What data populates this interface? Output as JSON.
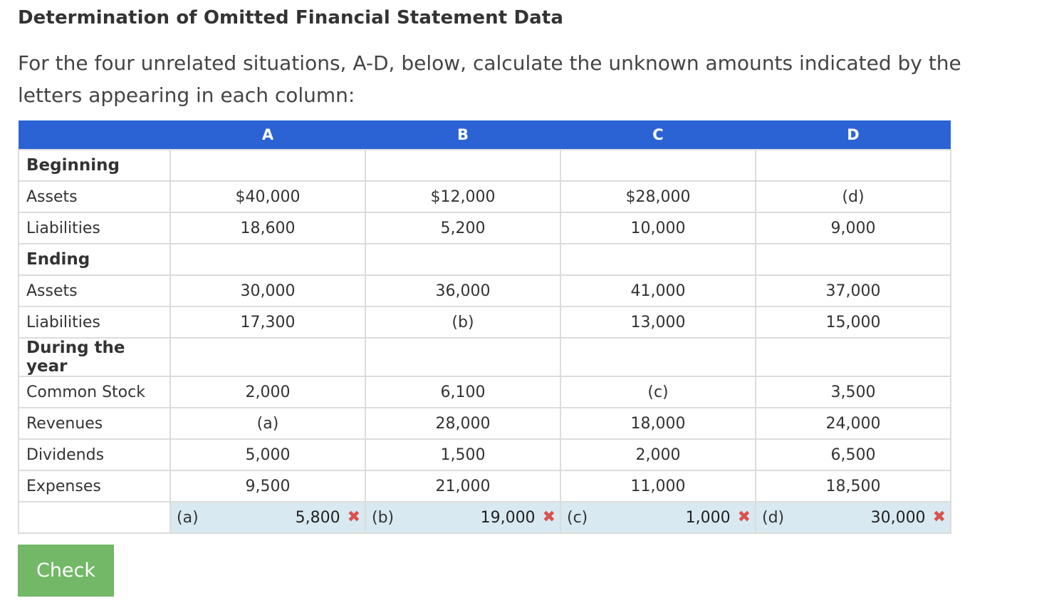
{
  "title": "Determination of Omitted Financial Statement Data",
  "intro": "For the four unrelated situations, A-D, below, calculate the unknown amounts indicated by the letters appearing in each column:",
  "table": {
    "headers": [
      "",
      "A",
      "B",
      "C",
      "D"
    ],
    "rows": [
      {
        "label": "Beginning",
        "section": true,
        "values": [
          "",
          "",
          "",
          ""
        ]
      },
      {
        "label": "Assets",
        "section": false,
        "values": [
          "$40,000",
          "$12,000",
          "$28,000",
          "(d)"
        ]
      },
      {
        "label": "Liabilities",
        "section": false,
        "values": [
          "18,600",
          "5,200",
          "10,000",
          "9,000"
        ]
      },
      {
        "label": "Ending",
        "section": true,
        "values": [
          "",
          "",
          "",
          ""
        ]
      },
      {
        "label": "Assets",
        "section": false,
        "values": [
          "30,000",
          "36,000",
          "41,000",
          "37,000"
        ]
      },
      {
        "label": "Liabilities",
        "section": false,
        "values": [
          "17,300",
          "(b)",
          "13,000",
          "15,000"
        ]
      },
      {
        "label": "During the year",
        "section": true,
        "values": [
          "",
          "",
          "",
          ""
        ]
      },
      {
        "label": "Common Stock",
        "section": false,
        "values": [
          "2,000",
          "6,100",
          "(c)",
          "3,500"
        ]
      },
      {
        "label": "Revenues",
        "section": false,
        "values": [
          "(a)",
          "28,000",
          "18,000",
          "24,000"
        ]
      },
      {
        "label": "Dividends",
        "section": false,
        "values": [
          "5,000",
          "1,500",
          "2,000",
          "6,500"
        ]
      },
      {
        "label": "Expenses",
        "section": false,
        "values": [
          "9,500",
          "21,000",
          "11,000",
          "18,500"
        ]
      }
    ],
    "answers": [
      {
        "letter": "(a)",
        "value": "5,800",
        "status_icon": "x-icon",
        "status_color": "#d9534f"
      },
      {
        "letter": "(b)",
        "value": "19,000",
        "status_icon": "x-icon",
        "status_color": "#d9534f"
      },
      {
        "letter": "(c)",
        "value": "1,000",
        "status_icon": "x-icon",
        "status_color": "#d9534f"
      },
      {
        "letter": "(d)",
        "value": "30,000",
        "status_icon": "x-icon",
        "status_color": "#d9534f"
      }
    ]
  },
  "check_button": {
    "label": "Check",
    "color": "#72b866"
  },
  "header_color": "#2b63d4"
}
